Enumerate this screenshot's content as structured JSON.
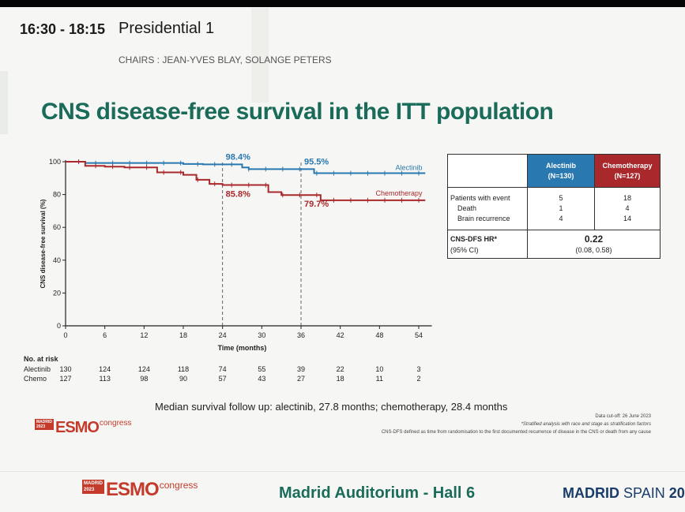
{
  "header": {
    "time": "16:30 - 18:15",
    "session": "Presidential 1",
    "chairs": "CHAIRS : JEAN-YVES BLAY, SOLANGE PETERS"
  },
  "slide_title": "CNS disease-free survival in the ITT population",
  "colors": {
    "alectinib": "#2a78b0",
    "chemotherapy": "#a8282b",
    "title": "#1a6b5a"
  },
  "chart_data": {
    "type": "line",
    "title": "",
    "xlabel": "Time (months)",
    "ylabel": "CNS disease-free survival (%)",
    "xlim": [
      0,
      56
    ],
    "ylim": [
      0,
      100
    ],
    "xticks": [
      0,
      6,
      12,
      18,
      24,
      30,
      36,
      42,
      48,
      54
    ],
    "yticks": [
      0,
      20,
      40,
      60,
      80,
      100
    ],
    "series": [
      {
        "name": "Alectinib",
        "color": "#2a78b0",
        "step": true,
        "x": [
          0,
          3,
          12,
          18,
          21,
          24,
          27,
          28,
          33,
          37,
          38,
          55
        ],
        "y": [
          100,
          99.2,
          99.2,
          98.6,
          98.4,
          98.4,
          96.5,
          95.5,
          95.5,
          95.5,
          93.0,
          93.0
        ]
      },
      {
        "name": "Chemotherapy",
        "color": "#a8282b",
        "step": true,
        "x": [
          0,
          3,
          6,
          9,
          14,
          18,
          20,
          22,
          24,
          30,
          31,
          33,
          37,
          39,
          55
        ],
        "y": [
          100,
          97.5,
          97.0,
          96.5,
          93.5,
          92.0,
          89.0,
          86.5,
          85.8,
          85.8,
          81.5,
          79.7,
          79.7,
          76.5,
          76.5
        ]
      }
    ],
    "annotations": [
      {
        "text": "98.4%",
        "series": "Alectinib",
        "x": 24,
        "y": 98.4
      },
      {
        "text": "95.5%",
        "series": "Alectinib",
        "x": 36,
        "y": 95.5
      },
      {
        "text": "85.8%",
        "series": "Chemotherapy",
        "x": 24,
        "y": 85.8
      },
      {
        "text": "79.7%",
        "series": "Chemotherapy",
        "x": 36,
        "y": 79.7
      }
    ],
    "reference_lines_x": [
      24,
      36
    ],
    "legend": "inline labels at right of curves"
  },
  "at_risk": {
    "heading": "No. at risk",
    "times": [
      0,
      6,
      12,
      18,
      24,
      30,
      36,
      42,
      48,
      54
    ],
    "rows": [
      {
        "label": "Alectinib",
        "values": [
          "130",
          "124",
          "124",
          "118",
          "74",
          "55",
          "39",
          "22",
          "10",
          "3"
        ]
      },
      {
        "label": "Chemo",
        "values": [
          "127",
          "113",
          "98",
          "90",
          "57",
          "43",
          "27",
          "18",
          "11",
          "2"
        ]
      }
    ]
  },
  "table": {
    "headers": [
      {
        "name": "Alectinib",
        "n": "(N=130)"
      },
      {
        "name": "Chemotherapy",
        "n": "(N=127)"
      }
    ],
    "events_label": "Patients with event",
    "death_label": "Death",
    "brain_label": "Brain recurrence",
    "events": [
      "5",
      "18"
    ],
    "death": [
      "1",
      "4"
    ],
    "brain": [
      "4",
      "14"
    ],
    "hr_label": "CNS-DFS HR*",
    "ci_label": "(95% CI)",
    "hr_value": "0.22",
    "ci_value": "(0.08, 0.58)"
  },
  "median_text": "Median survival follow up: alectinib, 27.8 months; chemotherapy, 28.4 months",
  "footnotes": [
    "Data cut-off: 26 June 2023",
    "*Stratified analysis with race and stage as stratification factors",
    "CNS-DFS defined as time from randomisation to the first documented recurrence of disease in the CNS or death from any cause"
  ],
  "logo": {
    "city": "MADRID",
    "year": "2023",
    "brand": "ESMO",
    "congress": "congress"
  },
  "footer": {
    "venue": "Madrid Auditorium - Hall 6",
    "city_bold": "MADRID",
    "city_rest": "SPAIN",
    "year_fragment": "20"
  }
}
